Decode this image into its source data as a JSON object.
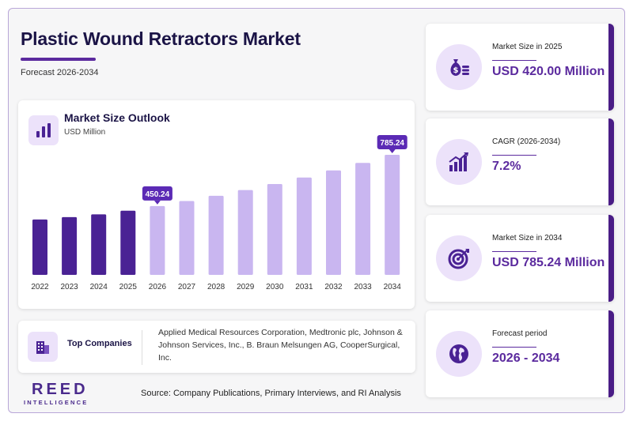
{
  "header": {
    "title": "Plastic Wound Retractors Market",
    "subtitle": "Forecast 2026-2034"
  },
  "chart_data": {
    "type": "bar",
    "title": "Market Size Outlook",
    "unit": "USD Million",
    "categories": [
      "2022",
      "2023",
      "2024",
      "2025",
      "2026",
      "2027",
      "2028",
      "2029",
      "2030",
      "2031",
      "2032",
      "2033",
      "2034"
    ],
    "values": [
      362,
      378,
      396,
      420,
      450.24,
      483,
      517,
      555,
      594,
      637,
      683,
      732,
      785.24
    ],
    "historical_until": "2025",
    "colors": {
      "historical": "#4a2294",
      "forecast": "#c9b6f0"
    },
    "callouts": [
      {
        "category": "2026",
        "label": "450.24"
      },
      {
        "category": "2034",
        "label": "785.24"
      }
    ],
    "ylim": [
      0,
      785.24
    ],
    "grid": false,
    "legend": "none"
  },
  "companies": {
    "label": "Top Companies",
    "text": "Applied Medical Resources Corporation, Medtronic plc, Johnson & Johnson Services, Inc., B. Braun Melsungen AG, CooperSurgical, Inc."
  },
  "footer": {
    "logo_main": "REED",
    "logo_sub": "INTELLIGENCE",
    "source": "Source: Company Publications, Primary Interviews, and RI Analysis"
  },
  "stats": [
    {
      "label": "Market Size in 2025",
      "value": "USD 420.00 Million",
      "icon": "money-bag-icon"
    },
    {
      "label": "CAGR (2026-2034)",
      "value": "7.2%",
      "icon": "growth-chart-icon"
    },
    {
      "label": "Market Size in 2034",
      "value": "USD 785.24 Million",
      "icon": "target-icon"
    },
    {
      "label": "Forecast period",
      "value": "2026 - 2034",
      "icon": "globe-icon"
    }
  ],
  "colors": {
    "accent": "#5b2a9e",
    "title": "#1b1446",
    "stat_border": "#4a1d86"
  }
}
